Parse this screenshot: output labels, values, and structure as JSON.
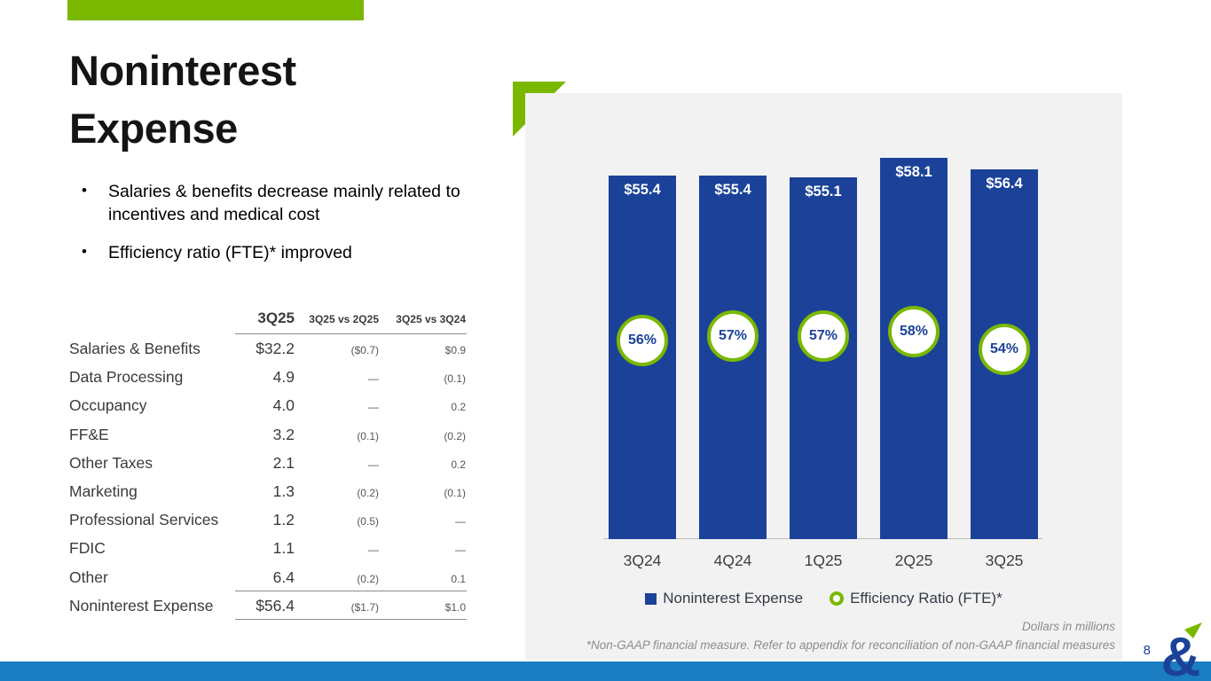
{
  "slide": {
    "title_lines": [
      "Noninterest",
      "Expense"
    ],
    "page_number": "8"
  },
  "colors": {
    "accent_green": "#7ab800",
    "bar_blue": "#1b4298",
    "footer_blue": "#1b7ec2",
    "panel_gray": "#f2f2f2"
  },
  "bullets": [
    "Salaries & benefits decrease mainly related to incentives and medical cost",
    "Efficiency ratio (FTE)* improved"
  ],
  "table": {
    "headers": {
      "col1": "3Q25",
      "col2": "3Q25 vs 2Q25",
      "col3": "3Q25 vs 3Q24"
    },
    "rows": [
      {
        "label": "Salaries & Benefits",
        "v": "$32.2",
        "vs2q": "($0.7)",
        "vs3q": "$0.9"
      },
      {
        "label": "Data Processing",
        "v": "4.9",
        "vs2q": "—",
        "vs3q": "(0.1)"
      },
      {
        "label": "Occupancy",
        "v": "4.0",
        "vs2q": "—",
        "vs3q": "0.2"
      },
      {
        "label": "FF&E",
        "v": "3.2",
        "vs2q": "(0.1)",
        "vs3q": "(0.2)"
      },
      {
        "label": "Other Taxes",
        "v": "2.1",
        "vs2q": "—",
        "vs3q": "0.2"
      },
      {
        "label": "Marketing",
        "v": "1.3",
        "vs2q": "(0.2)",
        "vs3q": "(0.1)"
      },
      {
        "label": "Professional Services",
        "v": "1.2",
        "vs2q": "(0.5)",
        "vs3q": "—"
      },
      {
        "label": "FDIC",
        "v": "1.1",
        "vs2q": "—",
        "vs3q": "—"
      },
      {
        "label": "Other",
        "v": "6.4",
        "vs2q": "(0.2)",
        "vs3q": "0.1"
      },
      {
        "label": "Noninterest Expense",
        "v": "$56.4",
        "vs2q": "($1.7)",
        "vs3q": "$1.0"
      }
    ]
  },
  "chart_data": {
    "type": "bar",
    "categories": [
      "3Q24",
      "4Q24",
      "1Q25",
      "2Q25",
      "3Q25"
    ],
    "series": [
      {
        "name": "Noninterest Expense",
        "type": "bar",
        "values": [
          55.4,
          55.4,
          55.1,
          58.1,
          56.4
        ],
        "labels": [
          "$55.4",
          "$55.4",
          "$55.1",
          "$58.1",
          "$56.4"
        ],
        "color": "#1b4298"
      },
      {
        "name": "Efficiency Ratio (FTE)*",
        "type": "marker",
        "values": [
          56,
          57,
          57,
          58,
          54
        ],
        "labels": [
          "56%",
          "57%",
          "57%",
          "58%",
          "54%"
        ],
        "color": "#7ab800"
      }
    ],
    "title": "",
    "xlabel": "",
    "ylabel": "",
    "ylim": [
      0,
      60
    ],
    "grid": false,
    "legend_position": "bottom"
  },
  "footnotes": {
    "units": "Dollars in millions",
    "non_gaap": "*Non-GAAP financial measure. Refer to appendix for reconciliation of non-GAAP financial measures"
  },
  "icons": {
    "corner_bracket": "corner-bracket",
    "logo_glyph": "&"
  }
}
